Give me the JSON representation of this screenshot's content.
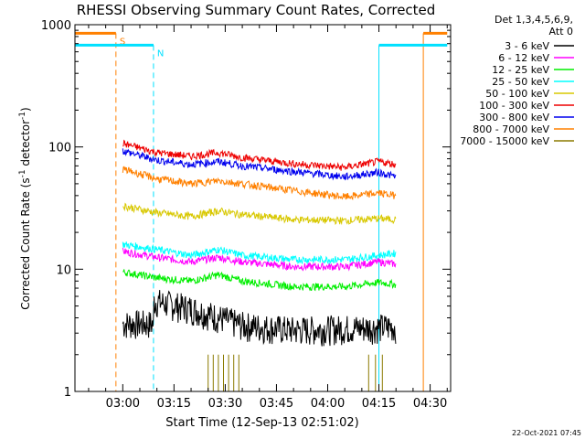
{
  "chart_data": {
    "type": "line",
    "title": "RHESSI Observing Summary Count Rates, Corrected",
    "xlabel": "Start Time (12-Sep-13 02:51:02)",
    "ylabel_main": "Corrected Count Rate (s",
    "ylabel_sup1": "-1",
    "ylabel_mid": " detector",
    "ylabel_sup2": "-1",
    "ylabel_end": ")",
    "yscale": "log",
    "ylim": [
      1,
      1000
    ],
    "xlim_minutes": [
      -14,
      96
    ],
    "x_ticks": [
      {
        "m": 0,
        "label": "03:00"
      },
      {
        "m": 15,
        "label": "03:15"
      },
      {
        "m": 30,
        "label": "03:30"
      },
      {
        "m": 45,
        "label": "03:45"
      },
      {
        "m": 60,
        "label": "04:00"
      },
      {
        "m": 75,
        "label": "04:15"
      },
      {
        "m": 90,
        "label": "04:30"
      }
    ],
    "y_ticks": [
      {
        "v": 1,
        "label": "1"
      },
      {
        "v": 10,
        "label": "10"
      },
      {
        "v": 100,
        "label": "100"
      },
      {
        "v": 1000,
        "label": "1000"
      }
    ],
    "legend_header": [
      "Det 1,3,4,5,6,9,",
      "Att 0"
    ],
    "series": [
      {
        "name": "3 - 6 keV",
        "color": "#000000"
      },
      {
        "name": "6 - 12 keV",
        "color": "#ff00ff"
      },
      {
        "name": "12 - 25 keV",
        "color": "#00ee00"
      },
      {
        "name": "25 - 50 keV",
        "color": "#00ffff"
      },
      {
        "name": "50 - 100 keV",
        "color": "#d8c800"
      },
      {
        "name": "100 - 300 keV",
        "color": "#ee0000"
      },
      {
        "name": "300 - 800 keV",
        "color": "#0000ee"
      },
      {
        "name": "800 - 7000 keV",
        "color": "#ff8000"
      },
      {
        "name": "7000 - 15000 keV",
        "color": "#8b7a00"
      }
    ],
    "series_values": [
      {
        "x": [
          0,
          9,
          9.1,
          20,
          35,
          50,
          65,
          80
        ],
        "y": [
          3.6,
          3.6,
          5.5,
          4.8,
          3.5,
          3.2,
          3.3,
          3.4
        ]
      },
      {
        "x": [
          0,
          10,
          20,
          28,
          35,
          50,
          65,
          75,
          80
        ],
        "y": [
          14,
          12.5,
          11.5,
          12.5,
          11.5,
          10.5,
          10.5,
          11.5,
          11
        ]
      },
      {
        "x": [
          0,
          10,
          20,
          28,
          35,
          50,
          65,
          75,
          80
        ],
        "y": [
          9.5,
          8.5,
          8,
          9,
          8,
          7.2,
          7.2,
          7.8,
          7.5
        ]
      },
      {
        "x": [
          0,
          10,
          20,
          28,
          35,
          50,
          65,
          75,
          80
        ],
        "y": [
          16,
          14.5,
          13,
          14.5,
          13,
          12,
          12,
          13,
          13.5
        ]
      },
      {
        "x": [
          0,
          10,
          20,
          28,
          35,
          50,
          65,
          75,
          80
        ],
        "y": [
          33,
          29,
          27,
          30,
          28,
          25.5,
          25,
          26,
          25.5
        ]
      },
      {
        "x": [
          0,
          10,
          20,
          28,
          35,
          50,
          65,
          75,
          80
        ],
        "y": [
          107,
          90,
          84,
          90,
          82,
          73,
          68,
          76,
          72
        ]
      },
      {
        "x": [
          0,
          10,
          20,
          28,
          35,
          50,
          65,
          75,
          80
        ],
        "y": [
          93,
          78,
          72,
          76,
          70,
          63,
          57,
          62,
          57
        ]
      },
      {
        "x": [
          0,
          10,
          20,
          28,
          35,
          50,
          65,
          75,
          80
        ],
        "y": [
          66,
          55,
          50,
          53,
          50,
          44,
          39,
          42,
          40
        ]
      },
      {
        "x": [
          25,
          26.5,
          28,
          29.5,
          31,
          32.5,
          34,
          72,
          74,
          76
        ],
        "y": [
          2,
          2,
          2,
          2,
          2,
          2,
          2,
          2,
          2,
          2
        ]
      }
    ],
    "flags": [
      {
        "label": "S",
        "color": "#ff8000",
        "start_m": -14,
        "end_m": -2,
        "level": 850,
        "line_m": -2,
        "end_line_m": 88,
        "end_bar_start": 88,
        "end_bar_end": 95
      },
      {
        "label": "N",
        "color": "#00e0ff",
        "start_m": -14,
        "end_m": 9,
        "level": 680,
        "line_m": 9,
        "end_line_m": 75,
        "end_bar_start": 75,
        "end_bar_end": 95
      }
    ],
    "timestamp": "22-Oct-2021 07:45"
  }
}
